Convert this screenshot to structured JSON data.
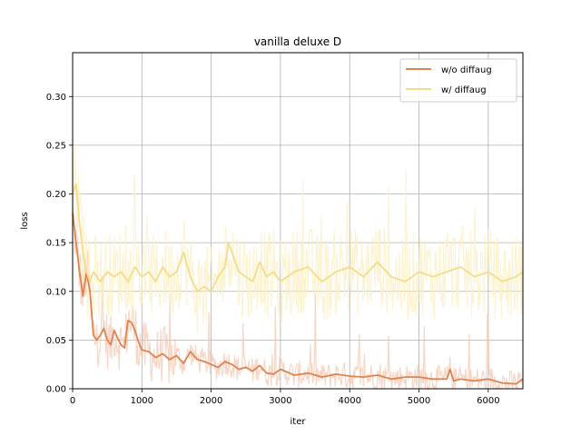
{
  "chart_data": {
    "type": "line",
    "title": "vanilla deluxe D",
    "xlabel": "iter",
    "ylabel": "loss",
    "xlim": [
      0,
      6500
    ],
    "ylim": [
      0,
      0.345
    ],
    "xticks": [
      0,
      1000,
      2000,
      3000,
      4000,
      5000,
      6000
    ],
    "xtick_labels": [
      "0",
      "1000",
      "2000",
      "3000",
      "4000",
      "5000",
      "6000"
    ],
    "yticks": [
      0.0,
      0.05,
      0.1,
      0.15,
      0.2,
      0.25,
      0.3
    ],
    "ytick_labels": [
      "0.00",
      "0.05",
      "0.10",
      "0.15",
      "0.20",
      "0.25",
      "0.30"
    ],
    "grid": true,
    "legend_position": "top-right",
    "series": [
      {
        "name": "w/o diffaug",
        "color": "#dd8452",
        "raw_color": "#f4c8b2",
        "x": [
          0,
          50,
          100,
          150,
          200,
          250,
          300,
          350,
          400,
          450,
          500,
          550,
          600,
          650,
          700,
          750,
          800,
          850,
          900,
          950,
          1000,
          1100,
          1200,
          1300,
          1400,
          1500,
          1600,
          1700,
          1800,
          1900,
          2000,
          2100,
          2200,
          2300,
          2400,
          2500,
          2600,
          2700,
          2800,
          2900,
          3000,
          3200,
          3400,
          3600,
          3800,
          4000,
          4200,
          4400,
          4600,
          4800,
          5000,
          5200,
          5400,
          5450,
          5500,
          5600,
          5800,
          6000,
          6200,
          6400,
          6500
        ],
        "values": [
          0.18,
          0.15,
          0.12,
          0.095,
          0.12,
          0.1,
          0.055,
          0.05,
          0.055,
          0.062,
          0.05,
          0.045,
          0.06,
          0.052,
          0.045,
          0.042,
          0.07,
          0.068,
          0.06,
          0.048,
          0.04,
          0.038,
          0.032,
          0.036,
          0.03,
          0.034,
          0.026,
          0.038,
          0.03,
          0.028,
          0.025,
          0.022,
          0.028,
          0.025,
          0.02,
          0.022,
          0.018,
          0.024,
          0.016,
          0.015,
          0.02,
          0.014,
          0.016,
          0.012,
          0.015,
          0.013,
          0.012,
          0.014,
          0.01,
          0.012,
          0.012,
          0.01,
          0.01,
          0.02,
          0.008,
          0.01,
          0.008,
          0.01,
          0.006,
          0.005,
          0.01
        ]
      },
      {
        "name": "w/ diffaug",
        "color": "#f3dc8a",
        "raw_color": "#fbefc4",
        "x": [
          0,
          50,
          100,
          150,
          200,
          250,
          300,
          350,
          400,
          500,
          600,
          700,
          800,
          900,
          1000,
          1100,
          1200,
          1300,
          1400,
          1500,
          1600,
          1700,
          1800,
          1900,
          2000,
          2100,
          2200,
          2250,
          2300,
          2400,
          2500,
          2600,
          2700,
          2800,
          2900,
          3000,
          3200,
          3400,
          3600,
          3800,
          4000,
          4200,
          4400,
          4600,
          4800,
          5000,
          5200,
          5400,
          5600,
          5800,
          6000,
          6200,
          6400,
          6500
        ],
        "values": [
          0.2,
          0.21,
          0.17,
          0.14,
          0.12,
          0.11,
          0.12,
          0.115,
          0.11,
          0.12,
          0.115,
          0.12,
          0.11,
          0.125,
          0.115,
          0.12,
          0.11,
          0.125,
          0.115,
          0.12,
          0.14,
          0.115,
          0.1,
          0.105,
          0.1,
          0.115,
          0.125,
          0.15,
          0.14,
          0.12,
          0.115,
          0.11,
          0.13,
          0.115,
          0.12,
          0.11,
          0.12,
          0.125,
          0.11,
          0.12,
          0.125,
          0.115,
          0.13,
          0.115,
          0.11,
          0.12,
          0.115,
          0.12,
          0.125,
          0.115,
          0.12,
          0.11,
          0.115,
          0.12
        ]
      }
    ]
  }
}
